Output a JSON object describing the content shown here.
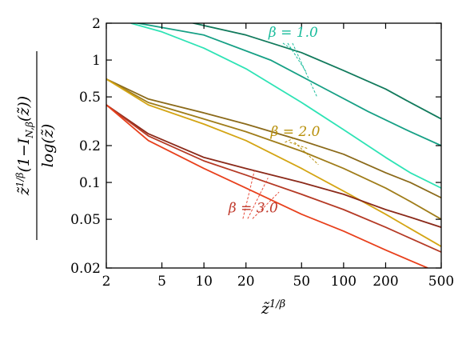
{
  "chart_data": {
    "type": "line",
    "x_scale": "log",
    "y_scale": "log",
    "xlim": [
      2,
      500
    ],
    "ylim": [
      0.02,
      2
    ],
    "xlabel": "z̃^{1/β}",
    "ylabel": "z̃^{1/β}(1−I_{N,β}(z̃)) / log(z̃)",
    "grid": false,
    "xticks": [
      {
        "value": 2,
        "label": "2"
      },
      {
        "value": 5,
        "label": "5"
      },
      {
        "value": 10,
        "label": "10"
      },
      {
        "value": 20,
        "label": "20"
      },
      {
        "value": 50,
        "label": "50"
      },
      {
        "value": 100,
        "label": "100"
      },
      {
        "value": 200,
        "label": "200"
      },
      {
        "value": 500,
        "label": "500"
      }
    ],
    "yticks": [
      {
        "value": 0.02,
        "label": "0.02"
      },
      {
        "value": 0.05,
        "label": "0.05"
      },
      {
        "value": 0.1,
        "label": "0.1"
      },
      {
        "value": 0.2,
        "label": "0.2"
      },
      {
        "value": 0.5,
        "label": "0.5"
      },
      {
        "value": 1,
        "label": "1"
      },
      {
        "value": 2,
        "label": "2"
      }
    ],
    "groups": [
      {
        "label": "β = 1.0",
        "label_color": "#1abc9c",
        "label_x": 29,
        "label_y": 1.55,
        "pointer": {
          "x": 43,
          "y": 0.72,
          "color": "#1abc9c"
        },
        "series": [
          {
            "color": "#117a5c",
            "points": [
              [
                7,
                2.1
              ],
              [
                20,
                1.6
              ],
              [
                50,
                1.15
              ],
              [
                100,
                0.82
              ],
              [
                200,
                0.58
              ],
              [
                300,
                0.45
              ],
              [
                500,
                0.33
              ]
            ]
          },
          {
            "color": "#16a085",
            "points": [
              [
                3,
                2.05
              ],
              [
                10,
                1.6
              ],
              [
                30,
                1.0
              ],
              [
                70,
                0.6
              ],
              [
                150,
                0.38
              ],
              [
                300,
                0.26
              ],
              [
                500,
                0.2
              ]
            ]
          },
          {
            "color": "#2ee3b5",
            "points": [
              [
                3,
                2.0
              ],
              [
                5,
                1.7
              ],
              [
                10,
                1.25
              ],
              [
                20,
                0.85
              ],
              [
                50,
                0.45
              ],
              [
                100,
                0.27
              ],
              [
                200,
                0.16
              ],
              [
                300,
                0.12
              ],
              [
                500,
                0.09
              ]
            ]
          }
        ]
      },
      {
        "label": "β = 2.0",
        "label_color": "#b8900b",
        "label_x": 30,
        "label_y": 0.24,
        "pointer": {
          "x": 44,
          "y": 0.13,
          "color": "#b8900b"
        },
        "series": [
          {
            "color": "#8b6a1a",
            "points": [
              [
                2,
                0.7
              ],
              [
                4,
                0.48
              ],
              [
                10,
                0.37
              ],
              [
                20,
                0.3
              ],
              [
                50,
                0.22
              ],
              [
                100,
                0.17
              ],
              [
                200,
                0.12
              ],
              [
                300,
                0.1
              ],
              [
                500,
                0.075
              ]
            ]
          },
          {
            "color": "#a07d1a",
            "points": [
              [
                2,
                0.7
              ],
              [
                4,
                0.45
              ],
              [
                10,
                0.33
              ],
              [
                20,
                0.26
              ],
              [
                50,
                0.18
              ],
              [
                100,
                0.13
              ],
              [
                200,
                0.09
              ],
              [
                300,
                0.07
              ],
              [
                500,
                0.05
              ]
            ]
          },
          {
            "color": "#d4a514",
            "points": [
              [
                2,
                0.7
              ],
              [
                4,
                0.43
              ],
              [
                10,
                0.3
              ],
              [
                20,
                0.22
              ],
              [
                50,
                0.13
              ],
              [
                100,
                0.085
              ],
              [
                200,
                0.055
              ],
              [
                300,
                0.042
              ],
              [
                500,
                0.03
              ]
            ]
          }
        ]
      },
      {
        "label": "β = 3.0",
        "label_color": "#c0392b",
        "label_x": 15,
        "label_y": 0.057,
        "pointer": {
          "x": 23,
          "y": 0.1,
          "color": "#e74c3c"
        },
        "series": [
          {
            "color": "#8b2a1a",
            "points": [
              [
                2,
                0.43
              ],
              [
                4,
                0.25
              ],
              [
                10,
                0.16
              ],
              [
                20,
                0.13
              ],
              [
                50,
                0.1
              ],
              [
                100,
                0.08
              ],
              [
                200,
                0.06
              ],
              [
                300,
                0.052
              ],
              [
                500,
                0.043
              ]
            ]
          },
          {
            "color": "#b53a25",
            "points": [
              [
                2,
                0.43
              ],
              [
                4,
                0.24
              ],
              [
                10,
                0.15
              ],
              [
                20,
                0.115
              ],
              [
                50,
                0.08
              ],
              [
                100,
                0.06
              ],
              [
                200,
                0.043
              ],
              [
                300,
                0.035
              ],
              [
                500,
                0.027
              ]
            ]
          },
          {
            "color": "#e8401c",
            "points": [
              [
                2,
                0.43
              ],
              [
                4,
                0.22
              ],
              [
                10,
                0.13
              ],
              [
                20,
                0.09
              ],
              [
                50,
                0.055
              ],
              [
                100,
                0.04
              ],
              [
                200,
                0.028
              ],
              [
                300,
                0.023
              ],
              [
                400,
                0.02
              ]
            ]
          }
        ]
      }
    ]
  }
}
